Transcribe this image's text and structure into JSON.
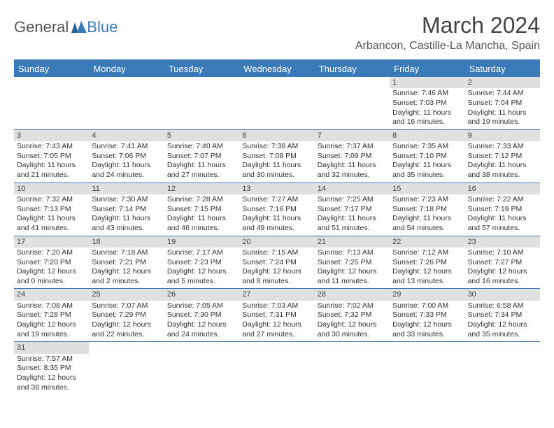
{
  "brand": {
    "part1": "General",
    "part2": "Blue"
  },
  "title": "March 2024",
  "location": "Arbancon, Castille-La Mancha, Spain",
  "colors": {
    "header_bg": "#3a7ab8",
    "daynum_bg": "#e0e0e0",
    "text": "#333333",
    "title_text": "#444444"
  },
  "weekdays": [
    "Sunday",
    "Monday",
    "Tuesday",
    "Wednesday",
    "Thursday",
    "Friday",
    "Saturday"
  ],
  "weeks": [
    [
      null,
      null,
      null,
      null,
      null,
      {
        "day": "1",
        "sunrise": "Sunrise: 7:46 AM",
        "sunset": "Sunset: 7:03 PM",
        "daylight1": "Daylight: 11 hours",
        "daylight2": "and 16 minutes."
      },
      {
        "day": "2",
        "sunrise": "Sunrise: 7:44 AM",
        "sunset": "Sunset: 7:04 PM",
        "daylight1": "Daylight: 11 hours",
        "daylight2": "and 19 minutes."
      }
    ],
    [
      {
        "day": "3",
        "sunrise": "Sunrise: 7:43 AM",
        "sunset": "Sunset: 7:05 PM",
        "daylight1": "Daylight: 11 hours",
        "daylight2": "and 21 minutes."
      },
      {
        "day": "4",
        "sunrise": "Sunrise: 7:41 AM",
        "sunset": "Sunset: 7:06 PM",
        "daylight1": "Daylight: 11 hours",
        "daylight2": "and 24 minutes."
      },
      {
        "day": "5",
        "sunrise": "Sunrise: 7:40 AM",
        "sunset": "Sunset: 7:07 PM",
        "daylight1": "Daylight: 11 hours",
        "daylight2": "and 27 minutes."
      },
      {
        "day": "6",
        "sunrise": "Sunrise: 7:38 AM",
        "sunset": "Sunset: 7:08 PM",
        "daylight1": "Daylight: 11 hours",
        "daylight2": "and 30 minutes."
      },
      {
        "day": "7",
        "sunrise": "Sunrise: 7:37 AM",
        "sunset": "Sunset: 7:09 PM",
        "daylight1": "Daylight: 11 hours",
        "daylight2": "and 32 minutes."
      },
      {
        "day": "8",
        "sunrise": "Sunrise: 7:35 AM",
        "sunset": "Sunset: 7:10 PM",
        "daylight1": "Daylight: 11 hours",
        "daylight2": "and 35 minutes."
      },
      {
        "day": "9",
        "sunrise": "Sunrise: 7:33 AM",
        "sunset": "Sunset: 7:12 PM",
        "daylight1": "Daylight: 11 hours",
        "daylight2": "and 38 minutes."
      }
    ],
    [
      {
        "day": "10",
        "sunrise": "Sunrise: 7:32 AM",
        "sunset": "Sunset: 7:13 PM",
        "daylight1": "Daylight: 11 hours",
        "daylight2": "and 41 minutes."
      },
      {
        "day": "11",
        "sunrise": "Sunrise: 7:30 AM",
        "sunset": "Sunset: 7:14 PM",
        "daylight1": "Daylight: 11 hours",
        "daylight2": "and 43 minutes."
      },
      {
        "day": "12",
        "sunrise": "Sunrise: 7:28 AM",
        "sunset": "Sunset: 7:15 PM",
        "daylight1": "Daylight: 11 hours",
        "daylight2": "and 46 minutes."
      },
      {
        "day": "13",
        "sunrise": "Sunrise: 7:27 AM",
        "sunset": "Sunset: 7:16 PM",
        "daylight1": "Daylight: 11 hours",
        "daylight2": "and 49 minutes."
      },
      {
        "day": "14",
        "sunrise": "Sunrise: 7:25 AM",
        "sunset": "Sunset: 7:17 PM",
        "daylight1": "Daylight: 11 hours",
        "daylight2": "and 51 minutes."
      },
      {
        "day": "15",
        "sunrise": "Sunrise: 7:23 AM",
        "sunset": "Sunset: 7:18 PM",
        "daylight1": "Daylight: 11 hours",
        "daylight2": "and 54 minutes."
      },
      {
        "day": "16",
        "sunrise": "Sunrise: 7:22 AM",
        "sunset": "Sunset: 7:19 PM",
        "daylight1": "Daylight: 11 hours",
        "daylight2": "and 57 minutes."
      }
    ],
    [
      {
        "day": "17",
        "sunrise": "Sunrise: 7:20 AM",
        "sunset": "Sunset: 7:20 PM",
        "daylight1": "Daylight: 12 hours",
        "daylight2": "and 0 minutes."
      },
      {
        "day": "18",
        "sunrise": "Sunrise: 7:18 AM",
        "sunset": "Sunset: 7:21 PM",
        "daylight1": "Daylight: 12 hours",
        "daylight2": "and 2 minutes."
      },
      {
        "day": "19",
        "sunrise": "Sunrise: 7:17 AM",
        "sunset": "Sunset: 7:23 PM",
        "daylight1": "Daylight: 12 hours",
        "daylight2": "and 5 minutes."
      },
      {
        "day": "20",
        "sunrise": "Sunrise: 7:15 AM",
        "sunset": "Sunset: 7:24 PM",
        "daylight1": "Daylight: 12 hours",
        "daylight2": "and 8 minutes."
      },
      {
        "day": "21",
        "sunrise": "Sunrise: 7:13 AM",
        "sunset": "Sunset: 7:25 PM",
        "daylight1": "Daylight: 12 hours",
        "daylight2": "and 11 minutes."
      },
      {
        "day": "22",
        "sunrise": "Sunrise: 7:12 AM",
        "sunset": "Sunset: 7:26 PM",
        "daylight1": "Daylight: 12 hours",
        "daylight2": "and 13 minutes."
      },
      {
        "day": "23",
        "sunrise": "Sunrise: 7:10 AM",
        "sunset": "Sunset: 7:27 PM",
        "daylight1": "Daylight: 12 hours",
        "daylight2": "and 16 minutes."
      }
    ],
    [
      {
        "day": "24",
        "sunrise": "Sunrise: 7:08 AM",
        "sunset": "Sunset: 7:28 PM",
        "daylight1": "Daylight: 12 hours",
        "daylight2": "and 19 minutes."
      },
      {
        "day": "25",
        "sunrise": "Sunrise: 7:07 AM",
        "sunset": "Sunset: 7:29 PM",
        "daylight1": "Daylight: 12 hours",
        "daylight2": "and 22 minutes."
      },
      {
        "day": "26",
        "sunrise": "Sunrise: 7:05 AM",
        "sunset": "Sunset: 7:30 PM",
        "daylight1": "Daylight: 12 hours",
        "daylight2": "and 24 minutes."
      },
      {
        "day": "27",
        "sunrise": "Sunrise: 7:03 AM",
        "sunset": "Sunset: 7:31 PM",
        "daylight1": "Daylight: 12 hours",
        "daylight2": "and 27 minutes."
      },
      {
        "day": "28",
        "sunrise": "Sunrise: 7:02 AM",
        "sunset": "Sunset: 7:32 PM",
        "daylight1": "Daylight: 12 hours",
        "daylight2": "and 30 minutes."
      },
      {
        "day": "29",
        "sunrise": "Sunrise: 7:00 AM",
        "sunset": "Sunset: 7:33 PM",
        "daylight1": "Daylight: 12 hours",
        "daylight2": "and 33 minutes."
      },
      {
        "day": "30",
        "sunrise": "Sunrise: 6:58 AM",
        "sunset": "Sunset: 7:34 PM",
        "daylight1": "Daylight: 12 hours",
        "daylight2": "and 35 minutes."
      }
    ],
    [
      {
        "day": "31",
        "sunrise": "Sunrise: 7:57 AM",
        "sunset": "Sunset: 8:35 PM",
        "daylight1": "Daylight: 12 hours",
        "daylight2": "and 38 minutes."
      },
      null,
      null,
      null,
      null,
      null,
      null
    ]
  ]
}
